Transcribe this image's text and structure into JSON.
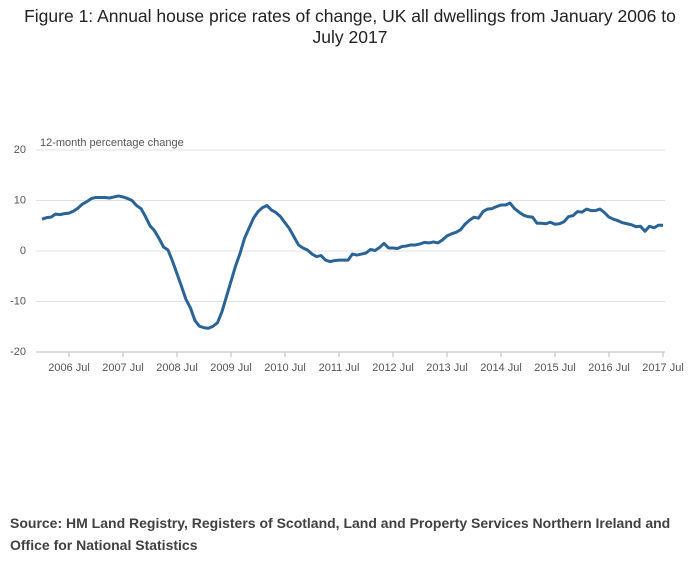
{
  "chart_data": {
    "type": "line",
    "title": "Figure 1: Annual house price rates of change, UK all dwellings from January 2006 to July 2017",
    "y_label": "12-month percentage change",
    "source": "Source: HM Land Registry, Registers of Scotland, Land and Property Services Northern Ireland and Office for National Statistics",
    "categories": [
      null,
      null,
      null,
      null,
      null,
      null,
      "2006 Jul",
      null,
      null,
      null,
      null,
      null,
      null,
      null,
      null,
      null,
      null,
      null,
      "2007 Jul",
      null,
      null,
      null,
      null,
      null,
      null,
      null,
      null,
      null,
      null,
      null,
      "2008 Jul",
      null,
      null,
      null,
      null,
      null,
      null,
      null,
      null,
      null,
      null,
      null,
      "2009 Jul",
      null,
      null,
      null,
      null,
      null,
      null,
      null,
      null,
      null,
      null,
      null,
      "2010 Jul",
      null,
      null,
      null,
      null,
      null,
      null,
      null,
      null,
      null,
      null,
      null,
      "2011 Jul",
      null,
      null,
      null,
      null,
      null,
      null,
      null,
      null,
      null,
      null,
      null,
      "2012 Jul",
      null,
      null,
      null,
      null,
      null,
      null,
      null,
      null,
      null,
      null,
      null,
      "2013 Jul",
      null,
      null,
      null,
      null,
      null,
      null,
      null,
      null,
      null,
      null,
      null,
      "2014 Jul",
      null,
      null,
      null,
      null,
      null,
      null,
      null,
      null,
      null,
      null,
      null,
      "2015 Jul",
      null,
      null,
      null,
      null,
      null,
      null,
      null,
      null,
      null,
      null,
      null,
      "2016 Jul",
      null,
      null,
      null,
      null,
      null,
      null,
      null,
      null,
      null,
      null,
      null,
      "2017 Jul"
    ],
    "series": [
      {
        "color": "#2a6496",
        "values": [
          6.3,
          6.6,
          6.7,
          7.3,
          7.2,
          7.4,
          7.5,
          7.9,
          8.5,
          9.3,
          9.8,
          10.4,
          10.6,
          10.6,
          10.6,
          10.5,
          10.7,
          10.9,
          10.7,
          10.4,
          10.0,
          9.0,
          8.4,
          6.8,
          5.0,
          4.0,
          2.5,
          0.8,
          0.2,
          -2.0,
          -4.5,
          -7.0,
          -9.6,
          -11.3,
          -13.8,
          -14.9,
          -15.2,
          -15.3,
          -14.9,
          -14.2,
          -12.0,
          -9.0,
          -6.0,
          -3.0,
          -0.5,
          2.5,
          4.5,
          6.5,
          7.8,
          8.6,
          9.0,
          8.1,
          7.6,
          6.8,
          5.6,
          4.4,
          2.8,
          1.2,
          0.6,
          0.2,
          -0.6,
          -1.1,
          -0.9,
          -1.8,
          -2.1,
          -1.9,
          -1.8,
          -1.8,
          -1.8,
          -0.6,
          -0.8,
          -0.6,
          -0.4,
          0.3,
          0.1,
          0.7,
          1.5,
          0.6,
          0.6,
          0.5,
          0.9,
          1.0,
          1.2,
          1.2,
          1.4,
          1.7,
          1.6,
          1.8,
          1.6,
          2.2,
          3.0,
          3.4,
          3.7,
          4.2,
          5.3,
          6.1,
          6.7,
          6.5,
          7.8,
          8.3,
          8.4,
          8.8,
          9.1,
          9.1,
          9.5,
          8.4,
          7.7,
          7.1,
          6.8,
          6.7,
          5.5,
          5.5,
          5.4,
          5.7,
          5.3,
          5.4,
          5.8,
          6.8,
          7.0,
          7.8,
          7.7,
          8.3,
          8.0,
          8.0,
          8.3,
          7.6,
          6.7,
          6.3,
          6.0,
          5.6,
          5.4,
          5.2,
          4.8,
          4.9,
          3.9,
          4.9,
          4.6,
          5.1,
          5.1
        ]
      }
    ],
    "ylim": [
      -20,
      20
    ],
    "yticks": [
      -20,
      -10,
      0,
      10,
      20
    ],
    "grid": true
  }
}
